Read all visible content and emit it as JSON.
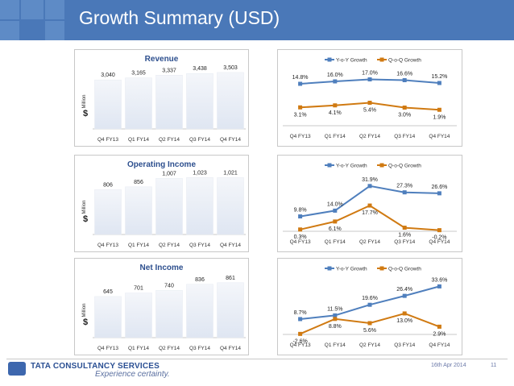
{
  "header": {
    "title": "Growth Summary (USD)"
  },
  "colors": {
    "header": "#4a78b8",
    "bar": "#dfe6f2",
    "yoy": "#4f7fbd",
    "qoq": "#d07a12"
  },
  "categories": [
    "Q4 FY13",
    "Q1 FY14",
    "Q2 FY14",
    "Q3 FY14",
    "Q4 FY14"
  ],
  "axis": {
    "currency": "$",
    "unit": "Million"
  },
  "panels": [
    {
      "bar": {
        "title": "Revenue",
        "values": [
          3040,
          3165,
          3337,
          3438,
          3503
        ],
        "labels": [
          "3,040",
          "3,165",
          "3,337",
          "3,438",
          "3,503"
        ],
        "ylim": [
          0,
          3800
        ]
      },
      "growth": {
        "legend": [
          "Y-o-Y Growth",
          "Q-o-Q Growth"
        ],
        "yoy": [
          14.8,
          16.0,
          17.0,
          16.6,
          15.2
        ],
        "yoy_labels": [
          "14.8%",
          "16.0%",
          "17.0%",
          "16.6%",
          "15.2%"
        ],
        "qoq": [
          3.1,
          4.1,
          5.4,
          3.0,
          1.9
        ],
        "qoq_labels": [
          "3.1%",
          "4.1%",
          "5.4%",
          "3.0%",
          "1.9%"
        ],
        "ylim": [
          -6,
          22
        ]
      }
    },
    {
      "bar": {
        "title": "Operating Income",
        "values": [
          806,
          856,
          1007,
          1023,
          1021
        ],
        "labels": [
          "806",
          "856",
          "1,007",
          "1,023",
          "1,021"
        ],
        "ylim": [
          0,
          1100
        ]
      },
      "growth": {
        "legend": [
          "Y-o-Y Growth",
          "Q-o-Q Growth"
        ],
        "yoy": [
          9.8,
          14.0,
          31.9,
          27.3,
          26.6
        ],
        "yoy_labels": [
          "9.8%",
          "14.0%",
          "31.9%",
          "27.3%",
          "26.6%"
        ],
        "qoq": [
          0.3,
          6.1,
          17.7,
          1.6,
          -0.2
        ],
        "qoq_labels": [
          "0.3%",
          "6.1%",
          "17.7%",
          "1.6%",
          "-0.2%"
        ],
        "ylim": [
          -1,
          40
        ]
      }
    },
    {
      "bar": {
        "title": "Net Income",
        "values": [
          645,
          701,
          740,
          836,
          861
        ],
        "labels": [
          "645",
          "701",
          "740",
          "836",
          "861"
        ],
        "ylim": [
          0,
          960
        ]
      },
      "growth": {
        "legend": [
          "Y-o-Y Growth",
          "Q-o-Q Growth"
        ],
        "yoy": [
          8.7,
          11.5,
          19.6,
          26.4,
          33.6
        ],
        "yoy_labels": [
          "8.7%",
          "11.5%",
          "19.6%",
          "26.4%",
          "33.6%"
        ],
        "qoq": [
          -2.6,
          8.8,
          5.6,
          13.0,
          2.9
        ],
        "qoq_labels": [
          "-2.6%",
          "8.8%",
          "5.6%",
          "13.0%",
          "2.9%"
        ],
        "ylim": [
          -3,
          40
        ]
      }
    }
  ],
  "footer": {
    "brand": "TATA CONSULTANCY SERVICES",
    "tagline": "Experience certainty.",
    "date": "16th Apr 2014",
    "page": "11"
  }
}
